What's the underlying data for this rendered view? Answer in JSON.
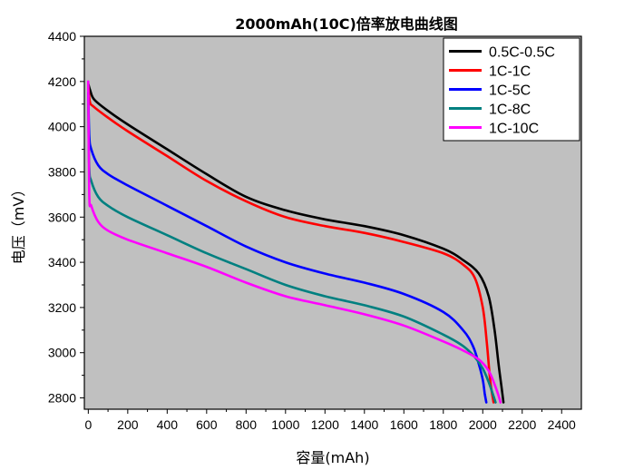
{
  "chart_data": {
    "type": "line",
    "title": "2000mAh(10C)倍率放电曲线图",
    "xlabel": "容量(mAh)",
    "ylabel": "电压（mV）",
    "xlim": [
      -20,
      2500
    ],
    "ylim": [
      2750,
      4400
    ],
    "xticks": [
      0,
      200,
      400,
      600,
      800,
      1000,
      1200,
      1400,
      1600,
      1800,
      2000,
      2200,
      2400
    ],
    "yticks": [
      2800,
      3000,
      3200,
      3400,
      3600,
      3800,
      4000,
      4200,
      4400
    ],
    "background": "#c0c0c0",
    "grid": false,
    "legend_position": "top-right",
    "series": [
      {
        "name": "0.5C-0.5C",
        "color": "#000000",
        "x": [
          0,
          10,
          30,
          100,
          200,
          400,
          600,
          800,
          1000,
          1200,
          1400,
          1600,
          1800,
          1900,
          1980,
          2030,
          2060,
          2080,
          2095,
          2105
        ],
        "y": [
          4190,
          4160,
          4120,
          4070,
          4010,
          3900,
          3790,
          3690,
          3630,
          3590,
          3560,
          3520,
          3460,
          3410,
          3350,
          3250,
          3100,
          2950,
          2850,
          2780
        ]
      },
      {
        "name": "1C-1C",
        "color": "#ff0000",
        "x": [
          0,
          8,
          25,
          100,
          200,
          400,
          600,
          800,
          1000,
          1200,
          1400,
          1600,
          1800,
          1900,
          1960,
          2000,
          2020,
          2035,
          2045,
          2055
        ],
        "y": [
          4180,
          4110,
          4090,
          4040,
          3980,
          3870,
          3760,
          3670,
          3600,
          3560,
          3530,
          3490,
          3440,
          3390,
          3330,
          3200,
          3050,
          2900,
          2830,
          2780
        ]
      },
      {
        "name": "1C-5C",
        "color": "#0000ff",
        "x": [
          0,
          5,
          15,
          50,
          100,
          200,
          400,
          600,
          800,
          1000,
          1200,
          1400,
          1600,
          1800,
          1900,
          1950,
          1980,
          2000,
          2010,
          2018
        ],
        "y": [
          4150,
          3960,
          3900,
          3830,
          3790,
          3740,
          3650,
          3560,
          3470,
          3400,
          3350,
          3310,
          3260,
          3180,
          3100,
          3030,
          2950,
          2880,
          2820,
          2780
        ]
      },
      {
        "name": "1C-8C",
        "color": "#008080",
        "x": [
          0,
          5,
          15,
          50,
          100,
          200,
          400,
          600,
          800,
          1000,
          1200,
          1400,
          1600,
          1800,
          1900,
          1960,
          2000,
          2030,
          2050,
          2065
        ],
        "y": [
          4100,
          3820,
          3760,
          3690,
          3650,
          3600,
          3520,
          3440,
          3370,
          3300,
          3250,
          3210,
          3160,
          3080,
          3030,
          2980,
          2930,
          2870,
          2820,
          2780
        ]
      },
      {
        "name": "1C-10C",
        "color": "#ff00ff",
        "x": [
          0,
          5,
          15,
          50,
          100,
          200,
          400,
          600,
          800,
          1000,
          1200,
          1400,
          1600,
          1800,
          1900,
          1980,
          2030,
          2060,
          2080,
          2090
        ],
        "y": [
          4200,
          3700,
          3650,
          3580,
          3540,
          3500,
          3440,
          3380,
          3310,
          3250,
          3210,
          3170,
          3120,
          3050,
          3010,
          2970,
          2920,
          2860,
          2810,
          2780
        ]
      }
    ]
  }
}
